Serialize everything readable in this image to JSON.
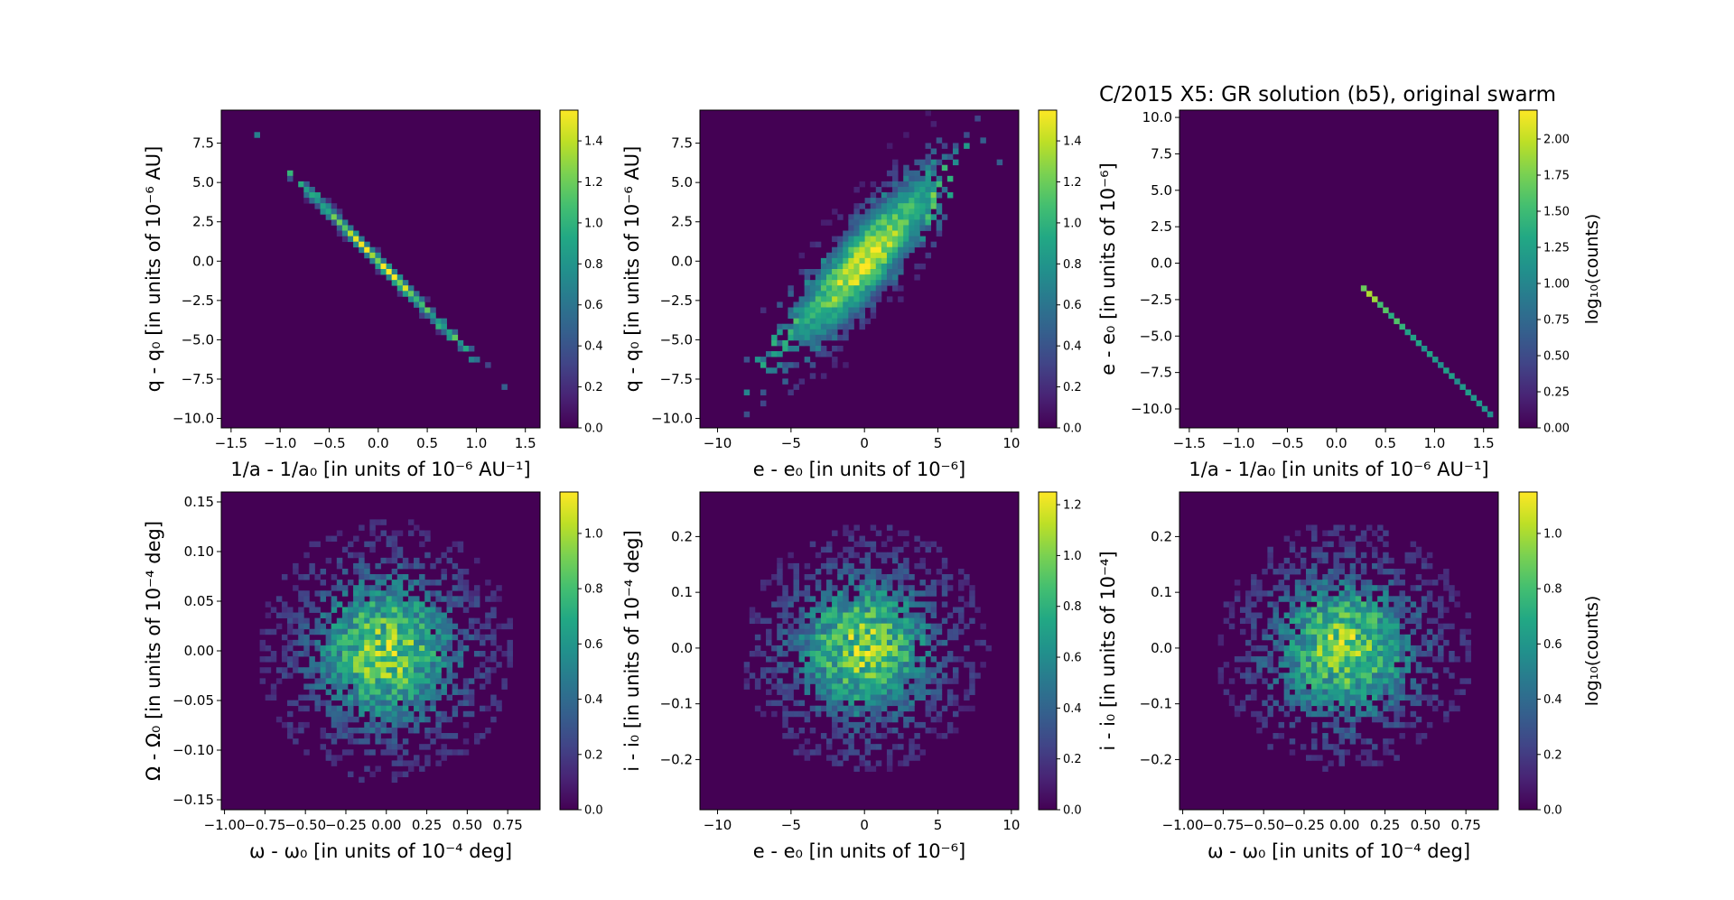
{
  "figure_title": "C/2015 X5: GR solution (b5), original swarm",
  "colors": {
    "viridis": [
      "#440154",
      "#482475",
      "#414487",
      "#355f8d",
      "#2a788e",
      "#21918c",
      "#22a884",
      "#44bf70",
      "#7ad151",
      "#bddf26",
      "#fde725"
    ]
  },
  "chart_data": [
    {
      "type": "heatmap",
      "title": "",
      "xlabel": "1/a - 1/a₀ [in units of 10⁻⁶ AU⁻¹]",
      "ylabel": "q - q₀ [in units of 10⁻⁶ AU]",
      "xlim": [
        -1.6,
        1.65
      ],
      "ylim": [
        -10.6,
        9.6
      ],
      "xticks": [
        -1.5,
        -1.0,
        -0.5,
        0.0,
        0.5,
        1.0,
        1.5
      ],
      "xtick_labels": [
        "−1.5",
        "−1.0",
        "−0.5",
        "0.0",
        "0.5",
        "1.0",
        "1.5"
      ],
      "yticks": [
        7.5,
        5.0,
        2.5,
        0.0,
        -2.5,
        -5.0,
        -7.5,
        -10.0
      ],
      "ytick_labels": [
        "7.5",
        "5.0",
        "2.5",
        "0.0",
        "−2.5",
        "−5.0",
        "−7.5",
        "−10.0"
      ],
      "colorbar": {
        "min": 0.0,
        "max": 1.55,
        "ticks": [
          0.0,
          0.2,
          0.4,
          0.6,
          0.8,
          1.0,
          1.2,
          1.4
        ],
        "tick_labels": [
          "0.0",
          "0.2",
          "0.4",
          "0.6",
          "0.8",
          "1.0",
          "1.2",
          "1.4"
        ],
        "label": ""
      },
      "distribution": {
        "shape": "line",
        "slope": -6.3,
        "sx": 0.45,
        "perp": 0.09,
        "peak": 1.5
      }
    },
    {
      "type": "heatmap",
      "title": "",
      "xlabel": "e - e₀ [in units of 10⁻⁶]",
      "ylabel": "q - q₀ [in units of 10⁻⁶ AU]",
      "xlim": [
        -11.2,
        10.5
      ],
      "ylim": [
        -10.6,
        9.6
      ],
      "xticks": [
        -10,
        -5,
        0,
        5,
        10
      ],
      "xtick_labels": [
        "−10",
        "−5",
        "0",
        "5",
        "10"
      ],
      "yticks": [
        7.5,
        5.0,
        2.5,
        0.0,
        -2.5,
        -5.0,
        -7.5,
        -10.0
      ],
      "ytick_labels": [
        "7.5",
        "5.0",
        "2.5",
        "0.0",
        "−2.5",
        "−5.0",
        "−7.5",
        "−10.0"
      ],
      "colorbar": {
        "min": 0.0,
        "max": 1.55,
        "ticks": [
          0.0,
          0.2,
          0.4,
          0.6,
          0.8,
          1.0,
          1.2,
          1.4
        ],
        "tick_labels": [
          "0.0",
          "0.2",
          "0.4",
          "0.6",
          "0.8",
          "1.0",
          "1.2",
          "1.4"
        ],
        "label": ""
      },
      "distribution": {
        "shape": "line",
        "slope": 0.93,
        "sx": 2.8,
        "perp": 0.55,
        "peak": 1.5
      }
    },
    {
      "type": "heatmap",
      "title": "C/2015 X5: GR solution (b5), original swarm",
      "xlabel": "1/a - 1/a₀ [in units of 10⁻⁶ AU⁻¹]",
      "ylabel": "e - e₀ [in units of 10⁻⁶]",
      "xlim": [
        -1.6,
        1.65
      ],
      "ylim": [
        -11.3,
        10.5
      ],
      "xticks": [
        -1.5,
        -1.0,
        -0.5,
        0.0,
        0.5,
        1.0,
        1.5
      ],
      "xtick_labels": [
        "−1.5",
        "−1.0",
        "−0.5",
        "0.0",
        "0.5",
        "1.0",
        "1.5"
      ],
      "yticks": [
        10.0,
        7.5,
        5.0,
        2.5,
        0.0,
        -2.5,
        -5.0,
        -7.5,
        -10.0
      ],
      "ytick_labels": [
        "10.0",
        "7.5",
        "5.0",
        "2.5",
        "0.0",
        "−2.5",
        "−5.0",
        "−7.5",
        "−10.0"
      ],
      "colorbar": {
        "min": 0.0,
        "max": 2.2,
        "ticks": [
          0.0,
          0.25,
          0.5,
          0.75,
          1.0,
          1.25,
          1.5,
          1.75,
          2.0
        ],
        "tick_labels": [
          "0.00",
          "0.25",
          "0.50",
          "0.75",
          "1.00",
          "1.25",
          "1.50",
          "1.75",
          "2.00"
        ],
        "label": "log₁₀(counts)"
      },
      "distribution": {
        "shape": "thin-line",
        "slope": -6.65,
        "sx": 0.45,
        "perp": 0.02,
        "peak": 2.1
      }
    },
    {
      "type": "heatmap",
      "title": "",
      "xlabel": "ω - ω₀ [in units of 10⁻⁴ deg]",
      "ylabel": "Ω - Ω₀ [in units of 10⁻⁴ deg]",
      "xlim": [
        -1.02,
        0.95
      ],
      "ylim": [
        -0.16,
        0.16
      ],
      "xticks": [
        -1.0,
        -0.75,
        -0.5,
        -0.25,
        0.0,
        0.25,
        0.5,
        0.75
      ],
      "xtick_labels": [
        "−1.00",
        "−0.75",
        "−0.50",
        "−0.25",
        "0.00",
        "0.25",
        "0.50",
        "0.75"
      ],
      "yticks": [
        0.15,
        0.1,
        0.05,
        0.0,
        -0.05,
        -0.1,
        -0.15
      ],
      "ytick_labels": [
        "0.15",
        "0.10",
        "0.05",
        "0.00",
        "−0.05",
        "−0.10",
        "−0.15"
      ],
      "colorbar": {
        "min": 0.0,
        "max": 1.15,
        "ticks": [
          0.0,
          0.2,
          0.4,
          0.6,
          0.8,
          1.0
        ],
        "tick_labels": [
          "0.0",
          "0.2",
          "0.4",
          "0.6",
          "0.8",
          "1.0"
        ],
        "label": ""
      },
      "distribution": {
        "shape": "blob",
        "sx": 0.3,
        "sy": 0.05,
        "peak": 1.05
      }
    },
    {
      "type": "heatmap",
      "title": "",
      "xlabel": "e - e₀ [in units of 10⁻⁶]",
      "ylabel": "i - i₀ [in units of 10⁻⁴ deg]",
      "xlim": [
        -11.2,
        10.5
      ],
      "ylim": [
        -0.29,
        0.28
      ],
      "xticks": [
        -10,
        -5,
        0,
        5,
        10
      ],
      "xtick_labels": [
        "−10",
        "−5",
        "0",
        "5",
        "10"
      ],
      "yticks": [
        0.2,
        0.1,
        0.0,
        -0.1,
        -0.2
      ],
      "ytick_labels": [
        "0.2",
        "0.1",
        "0.0",
        "−0.1",
        "−0.2"
      ],
      "colorbar": {
        "min": 0.0,
        "max": 1.25,
        "ticks": [
          0.0,
          0.2,
          0.4,
          0.6,
          0.8,
          1.0,
          1.2
        ],
        "tick_labels": [
          "0.0",
          "0.2",
          "0.4",
          "0.6",
          "0.8",
          "1.0",
          "1.2"
        ],
        "label": ""
      },
      "distribution": {
        "shape": "blob",
        "sx": 3.2,
        "sy": 0.085,
        "peak": 1.15
      }
    },
    {
      "type": "heatmap",
      "title": "",
      "xlabel": "ω - ω₀ [in units of 10⁻⁴ deg]",
      "ylabel": "i - i₀ [in units of 10⁻⁴]",
      "xlim": [
        -1.02,
        0.95
      ],
      "ylim": [
        -0.29,
        0.28
      ],
      "xticks": [
        -1.0,
        -0.75,
        -0.5,
        -0.25,
        0.0,
        0.25,
        0.5,
        0.75
      ],
      "xtick_labels": [
        "−1.00",
        "−0.75",
        "−0.50",
        "−0.25",
        "0.00",
        "0.25",
        "0.50",
        "0.75"
      ],
      "yticks": [
        0.2,
        0.1,
        0.0,
        -0.1,
        -0.2
      ],
      "ytick_labels": [
        "0.2",
        "0.1",
        "0.0",
        "−0.1",
        "−0.2"
      ],
      "colorbar": {
        "min": 0.0,
        "max": 1.15,
        "ticks": [
          0.0,
          0.2,
          0.4,
          0.6,
          0.8,
          1.0
        ],
        "tick_labels": [
          "0.0",
          "0.2",
          "0.4",
          "0.6",
          "0.8",
          "1.0"
        ],
        "label": "log₁₀(counts)"
      },
      "distribution": {
        "shape": "blob",
        "sx": 0.3,
        "sy": 0.085,
        "peak": 1.05
      }
    }
  ]
}
